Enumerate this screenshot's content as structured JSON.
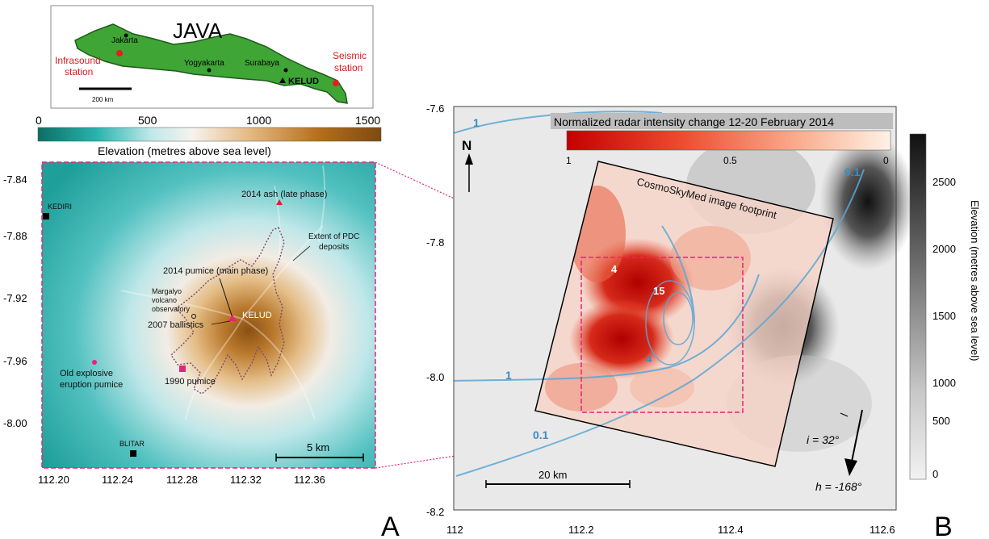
{
  "inset": {
    "title": "JAVA",
    "places": [
      {
        "name": "Jakarta"
      },
      {
        "name": "Yogyakarta"
      },
      {
        "name": "Surabaya"
      },
      {
        "name": "KELUD"
      }
    ],
    "stations": [
      {
        "line1": "Infrasound",
        "line2": "station"
      },
      {
        "line1": "Seismic",
        "line2": "station"
      }
    ],
    "scale_label": "200 km"
  },
  "panel_a": {
    "letter": "A",
    "colorbar": {
      "ticks": [
        "0",
        "500",
        "1000",
        "1500"
      ],
      "label": "Elevation (metres above sea level)",
      "colors": [
        "#0d6e63",
        "#28b3ad",
        "#bfe9ea",
        "#f6f3ee",
        "#e4b880",
        "#b46e1e",
        "#7d4a10"
      ]
    },
    "y_ticks": [
      "-7.84",
      "-7.88",
      "-7.92",
      "-7.96",
      "-8.00"
    ],
    "x_ticks": [
      "112.20",
      "112.24",
      "112.28",
      "112.32",
      "112.36"
    ],
    "labels": {
      "kediri": "KEDIRI",
      "blitar": "BLITAR",
      "ash": "2014 ash (late phase)",
      "pdc_1": "Extent of PDC",
      "pdc_2": "deposits",
      "pumice_main": "2014 pumice (main phase)",
      "obs_1": "Margalyo",
      "obs_2": "volcano",
      "obs_3": "observatory",
      "kelud": "KELUD",
      "ballistics": "2007 ballistics",
      "old_1": "Old explosive",
      "old_2": "eruption pumice",
      "pumice_1990": "1990 pumice"
    },
    "scale_label": "5 km",
    "colors": {
      "accent": "#e8237a",
      "pdc": "#7a4a6a"
    }
  },
  "panel_b": {
    "letter": "B",
    "y_ticks": [
      "-7.6",
      "-7.8",
      "-8.0",
      "-8.2"
    ],
    "x_ticks": [
      "112",
      "112.2",
      "112.4",
      "112.6"
    ],
    "north": "N",
    "intensity_bar": {
      "title": "Normalized radar intensity change 12-20 February 2014",
      "ticks": [
        "1",
        "0.5",
        "0"
      ],
      "colors": [
        "#c40000",
        "#ee4a2e",
        "#f9a98a",
        "#fff2e6"
      ]
    },
    "footprint_label": "CosmoSkyMed image footprint",
    "contours": [
      "1",
      "0.1",
      "1",
      "0.1",
      "4",
      "15",
      "4"
    ],
    "scale_label": "20 km",
    "incidence": "i = 32°",
    "heading": "h = -168°",
    "elev_bar": {
      "ticks": [
        "2500",
        "2000",
        "1500",
        "1000",
        "500",
        "0"
      ],
      "label": "Elevation (metres above sea level)"
    },
    "colors": {
      "contour": "#5aa7d6",
      "footprint": "#000000",
      "zoom_box": "#e8237a"
    }
  }
}
